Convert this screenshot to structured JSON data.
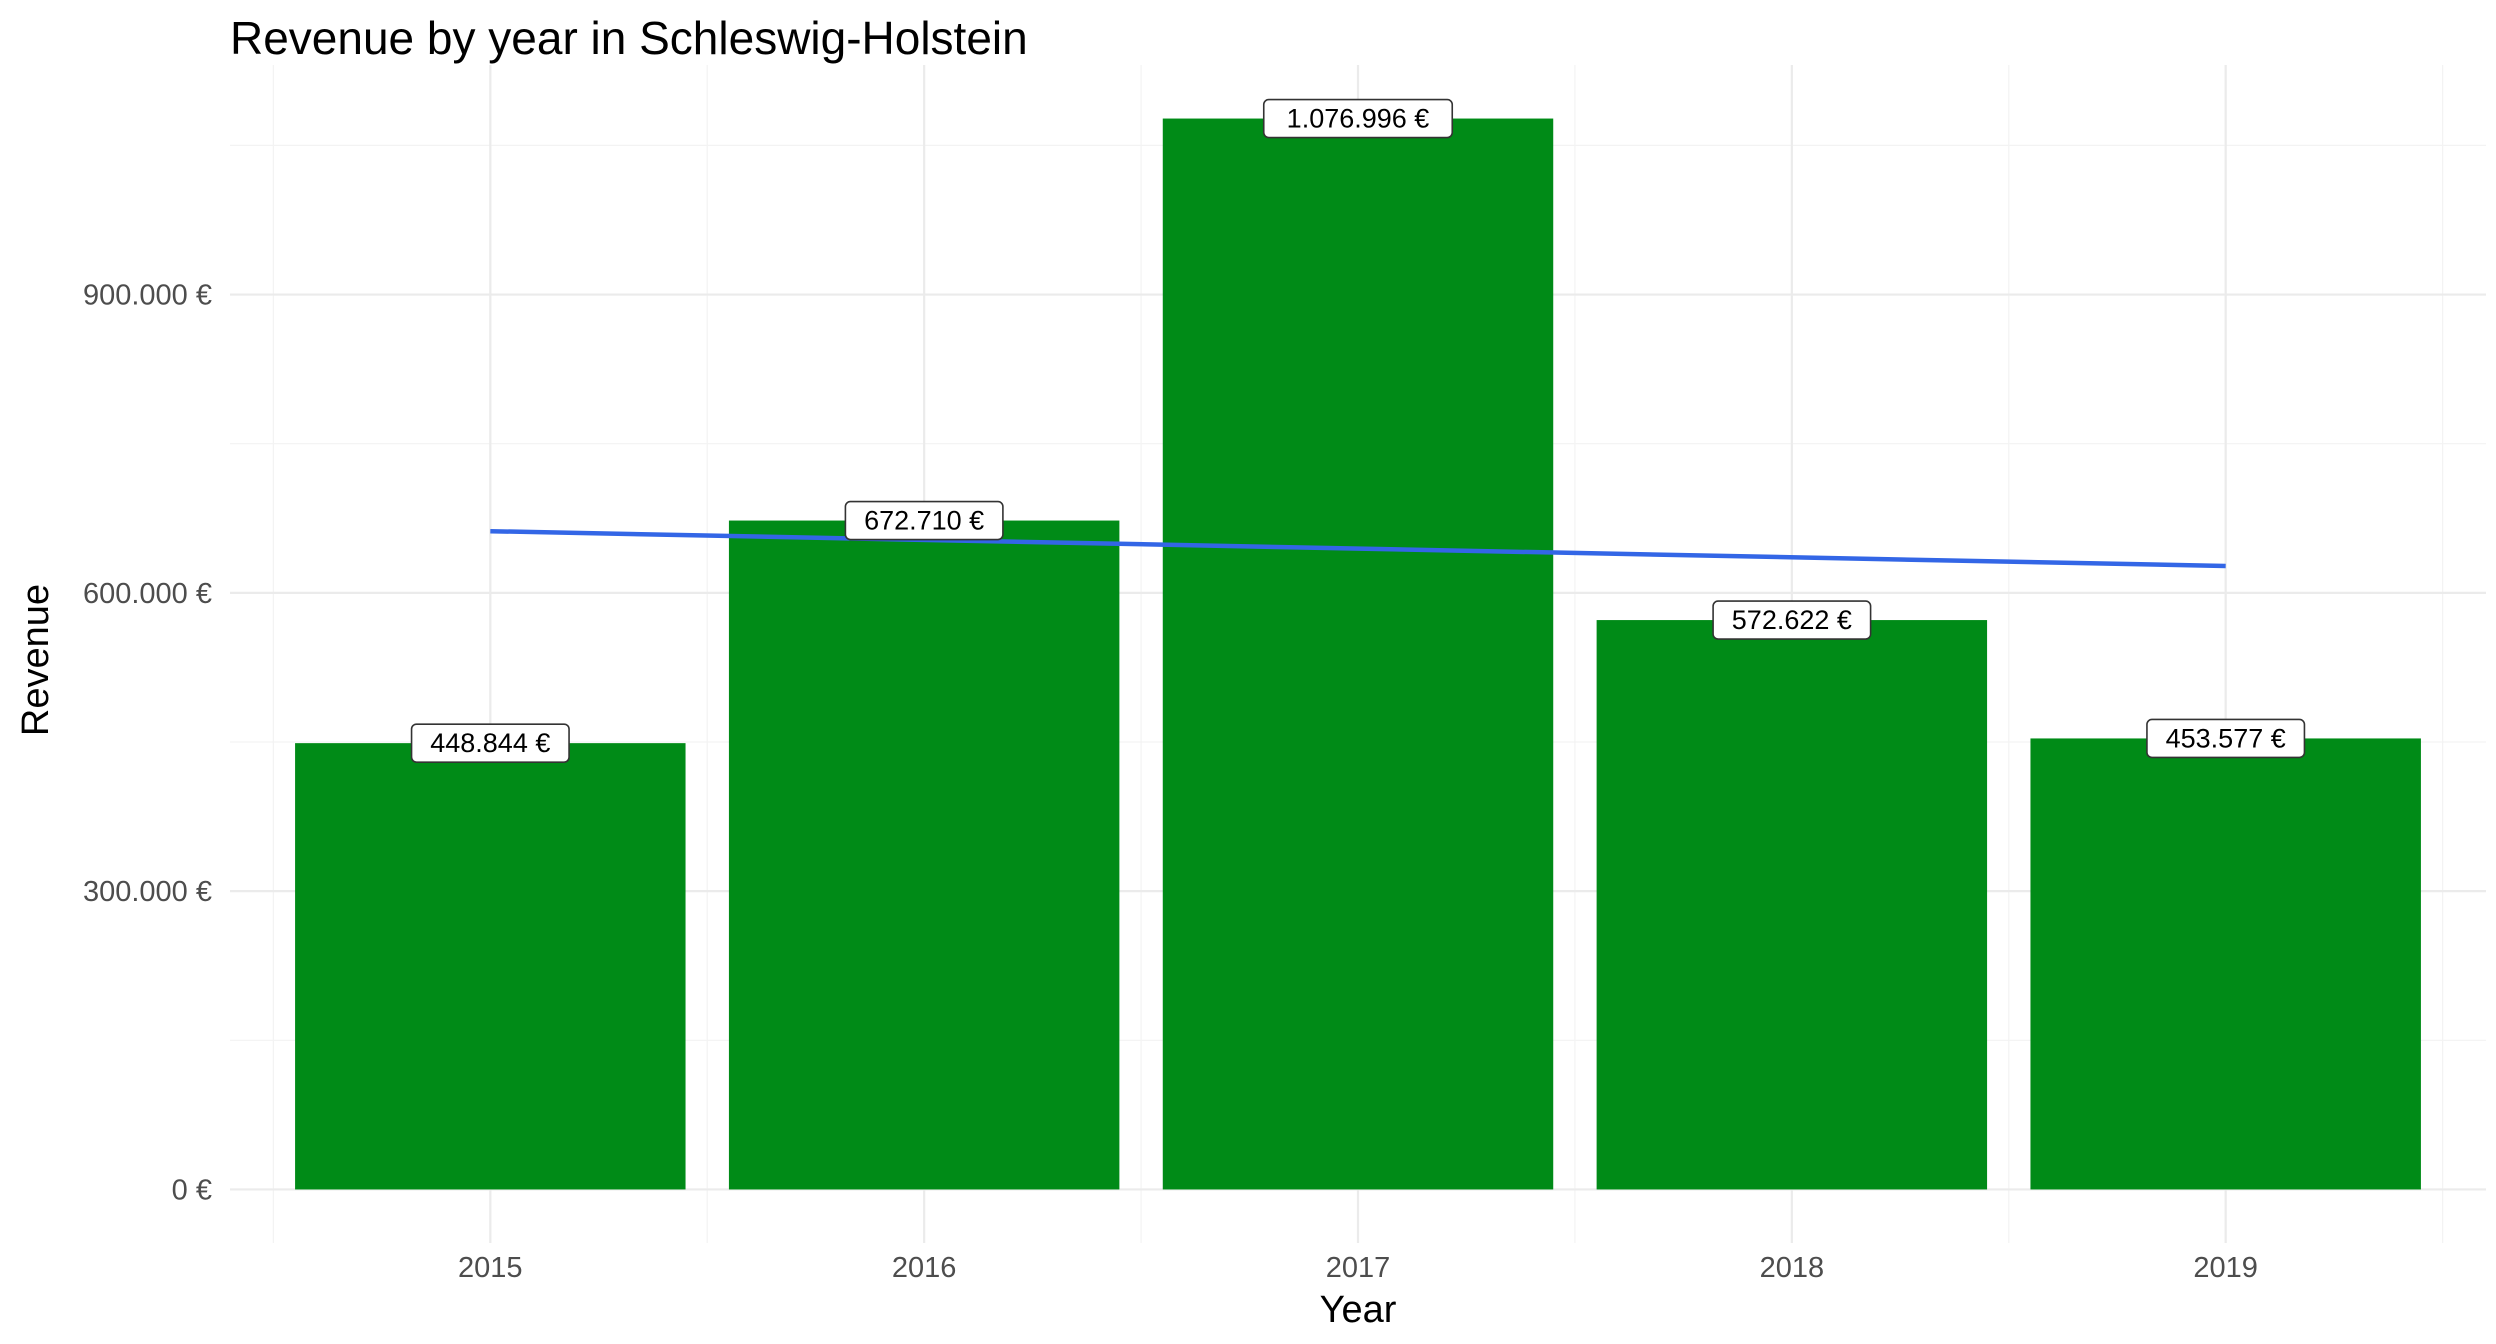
{
  "chart_data": {
    "type": "bar",
    "title": "Revenue by year in Schleswig-Holstein",
    "xlabel": "Year",
    "ylabel": "Revenue",
    "categories": [
      "2015",
      "2016",
      "2017",
      "2018",
      "2019"
    ],
    "values": [
      448844,
      672710,
      1076996,
      572622,
      453577
    ],
    "value_labels": [
      "448.844 €",
      "672.710 €",
      "1.076.996 €",
      "572.622 €",
      "453.577 €"
    ],
    "y_ticks": [
      0,
      300000,
      600000,
      900000
    ],
    "y_tick_labels": [
      "0 €",
      "300.000 €",
      "600.000 €",
      "900.000 €"
    ],
    "ylim": [
      -53850,
      1130846
    ],
    "grid": true,
    "legend": "none",
    "bar_color": "#008b17",
    "trend_line": {
      "type": "linear",
      "color": "#3366e6",
      "x": [
        "2015",
        "2019"
      ],
      "y": [
        662000,
        627000
      ]
    }
  }
}
